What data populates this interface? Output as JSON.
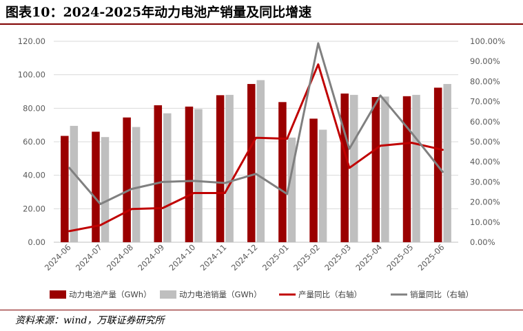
{
  "title": "图表10：2024-2025年动力电池产销量及同比增速",
  "source": "资料来源：wind，万联证券研究所",
  "chart_data": {
    "type": "bar",
    "categories": [
      "2024-06",
      "2024-07",
      "2024-08",
      "2024-09",
      "2024-10",
      "2024-11",
      "2024-12",
      "2025-01",
      "2025-02",
      "2025-03",
      "2025-04",
      "2025-05",
      "2025-06"
    ],
    "ylim": [
      0,
      120
    ],
    "yticks": [
      "0.00",
      "20.00",
      "40.00",
      "60.00",
      "80.00",
      "100.00",
      "120.00"
    ],
    "y2lim": [
      0,
      100
    ],
    "y2ticks": [
      "0.00%",
      "10.00%",
      "20.00%",
      "30.00%",
      "40.00%",
      "50.00%",
      "60.00%",
      "70.00%",
      "80.00%",
      "90.00%",
      "100.00%"
    ],
    "grid": true,
    "legend_position": "bottom",
    "series": [
      {
        "name": "动力电池产量（GWh）",
        "type": "bar",
        "axis": "left",
        "color": "#9a0000",
        "values": [
          63.5,
          66.0,
          74.5,
          81.8,
          81.0,
          87.8,
          94.5,
          83.7,
          73.8,
          88.8,
          86.7,
          87.2,
          92.3
        ]
      },
      {
        "name": "动力电池销量（GWh）",
        "type": "bar",
        "axis": "left",
        "color": "#bfbfbf",
        "values": [
          69.5,
          62.8,
          68.8,
          77.0,
          79.5,
          88.0,
          96.8,
          62.5,
          67.2,
          88.0,
          87.0,
          88.0,
          94.5
        ]
      },
      {
        "name": "产量同比（右轴）",
        "type": "line",
        "axis": "right",
        "color": "#c00000",
        "values": [
          5.5,
          8.5,
          16.5,
          17.0,
          24.5,
          24.5,
          52.0,
          51.5,
          88.5,
          37.0,
          48.0,
          49.5,
          46.0
        ]
      },
      {
        "name": "销量同比（右轴）",
        "type": "line",
        "axis": "right",
        "color": "#808080",
        "values": [
          37.0,
          19.0,
          26.5,
          30.0,
          30.5,
          29.5,
          34.0,
          24.0,
          99.0,
          46.5,
          73.0,
          54.5,
          35.0
        ]
      }
    ]
  }
}
